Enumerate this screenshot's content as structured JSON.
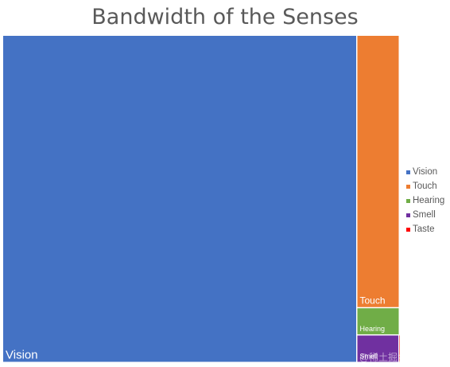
{
  "title": "Bandwidth of the Senses",
  "chart_data": {
    "type": "treemap",
    "title": "Bandwidth of the Senses",
    "legend_position": "right",
    "series": [
      {
        "name": "Vision",
        "value": 10000,
        "color": "#4472C4"
      },
      {
        "name": "Touch",
        "value": 1000,
        "color": "#ED7D31"
      },
      {
        "name": "Hearing",
        "value": 100,
        "color": "#70AD47"
      },
      {
        "name": "Smell",
        "value": 100,
        "color": "#7030A0"
      },
      {
        "name": "Taste",
        "value": 1,
        "color": "#FF0000"
      }
    ]
  },
  "watermark": "@稀土掘金技术社区"
}
